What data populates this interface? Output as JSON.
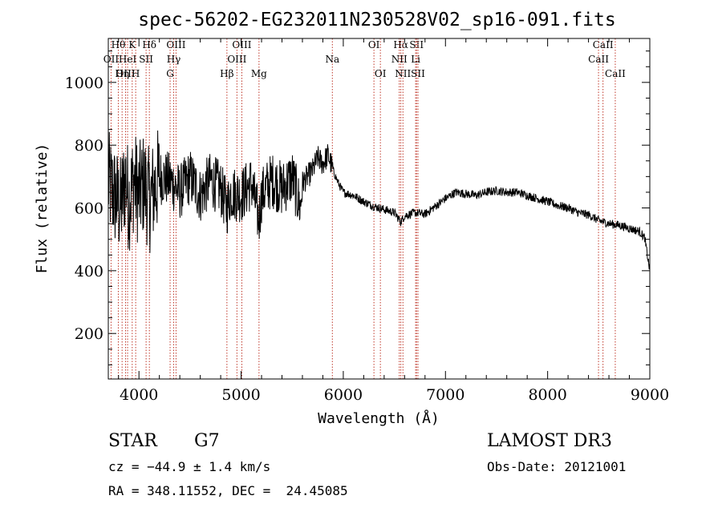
{
  "chart_data": {
    "type": "line",
    "title": "spec-56202-EG232011N230528V02_sp16-091.fits",
    "xlabel": "Wavelength (Å)",
    "ylabel": "Flux (relative)",
    "xlim": [
      3700,
      9000
    ],
    "ylim": [
      55,
      1140
    ],
    "xticks": [
      4000,
      5000,
      6000,
      7000,
      8000,
      9000
    ],
    "yticks": [
      200,
      400,
      600,
      800,
      1000
    ],
    "x_minor_step": 200,
    "y_minor_step": 50,
    "series": [
      {
        "name": "flux",
        "color": "#000000",
        "x": [
          3700,
          3760,
          3820,
          3870,
          3900,
          3950,
          4000,
          4050,
          4102,
          4150,
          4200,
          4300,
          4400,
          4500,
          4600,
          4700,
          4800,
          4861,
          4900,
          5000,
          5100,
          5175,
          5200,
          5300,
          5400,
          5500,
          5580,
          5600,
          5700,
          5750,
          5800,
          5850,
          5900,
          5950,
          6000,
          6100,
          6200,
          6300,
          6400,
          6500,
          6563,
          6600,
          6700,
          6800,
          6900,
          7000,
          7100,
          7200,
          7300,
          7400,
          7500,
          7600,
          7700,
          7800,
          7900,
          8000,
          8100,
          8200,
          8300,
          8400,
          8500,
          8600,
          8700,
          8800,
          8900,
          8950,
          9000
        ],
        "y": [
          680,
          640,
          600,
          700,
          620,
          690,
          640,
          680,
          620,
          660,
          700,
          690,
          650,
          700,
          640,
          690,
          660,
          600,
          650,
          640,
          680,
          560,
          640,
          690,
          660,
          700,
          600,
          680,
          720,
          760,
          740,
          770,
          720,
          680,
          650,
          640,
          620,
          605,
          595,
          585,
          555,
          575,
          585,
          580,
          605,
          630,
          650,
          645,
          640,
          650,
          655,
          650,
          650,
          640,
          630,
          620,
          608,
          600,
          585,
          578,
          560,
          550,
          545,
          535,
          525,
          505,
          400
        ],
        "noise": [
          {
            "from": 3700,
            "to": 4200,
            "amp": 170
          },
          {
            "from": 4200,
            "to": 5600,
            "amp": 90
          },
          {
            "from": 5600,
            "to": 5900,
            "amp": 40
          },
          {
            "from": 5900,
            "to": 9000,
            "amp": 14
          }
        ]
      }
    ],
    "spectral_lines": [
      {
        "label": "Hθ",
        "wavelength": 3798,
        "row": 1
      },
      {
        "label": "OII",
        "wavelength": 3727,
        "row": 2
      },
      {
        "label": "OIII",
        "wavelength": 3869,
        "row": 3
      },
      {
        "label": "K",
        "wavelength": 3934,
        "row": 1
      },
      {
        "label": "HeI",
        "wavelength": 3889,
        "row": 2
      },
      {
        "label": "Hη",
        "wavelength": 3835,
        "row": 3
      },
      {
        "label": "Hδ",
        "wavelength": 4102,
        "row": 1
      },
      {
        "label": "SII",
        "wavelength": 4070,
        "row": 2
      },
      {
        "label": "H",
        "wavelength": 3968,
        "row": 3
      },
      {
        "label": "OIII",
        "wavelength": 4363,
        "row": 1
      },
      {
        "label": "Hγ",
        "wavelength": 4340,
        "row": 2
      },
      {
        "label": "G",
        "wavelength": 4305,
        "row": 3
      },
      {
        "label": "OIII",
        "wavelength": 5007,
        "row": 1
      },
      {
        "label": "OIII",
        "wavelength": 4959,
        "row": 2
      },
      {
        "label": "Hβ",
        "wavelength": 4861,
        "row": 3
      },
      {
        "label": "Mg",
        "wavelength": 5175,
        "row": 3
      },
      {
        "label": "Na",
        "wavelength": 5893,
        "row": 2
      },
      {
        "label": "OI",
        "wavelength": 6300,
        "row": 1
      },
      {
        "label": "OI",
        "wavelength": 6363,
        "row": 3
      },
      {
        "label": "Hα",
        "wavelength": 6563,
        "row": 1
      },
      {
        "label": "NII",
        "wavelength": 6548,
        "row": 2
      },
      {
        "label": "NII",
        "wavelength": 6584,
        "row": 3
      },
      {
        "label": "SII",
        "wavelength": 6717,
        "row": 1
      },
      {
        "label": "Li",
        "wavelength": 6708,
        "row": 2
      },
      {
        "label": "SII",
        "wavelength": 6731,
        "row": 3
      },
      {
        "label": "CaII",
        "wavelength": 8542,
        "row": 1
      },
      {
        "label": "CaII",
        "wavelength": 8498,
        "row": 2
      },
      {
        "label": "CaII",
        "wavelength": 8662,
        "row": 3
      }
    ],
    "line_color": "#c0392b"
  },
  "info": {
    "class": "STAR",
    "subclass": "G7",
    "survey": "LAMOST DR3",
    "redshift": "cz = −44.9 ± 1.4 km/s",
    "obs_date": "Obs-Date: 20121001",
    "coords": "RA = 348.11552, DEC =  24.45085"
  }
}
